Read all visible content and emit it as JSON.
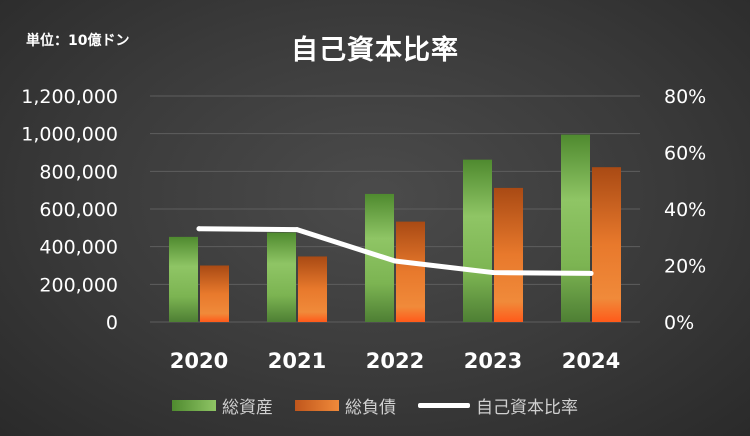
{
  "unit_label": "単位：10億ドン",
  "chart_data": {
    "type": "bar+line",
    "title": "自己資本比率",
    "categories": [
      "2020",
      "2021",
      "2022",
      "2023",
      "2024"
    ],
    "series": [
      {
        "name": "総資産",
        "type": "bar",
        "axis": "left",
        "values": [
          452000,
          475000,
          680000,
          862000,
          995000
        ],
        "color": "#8fc565"
      },
      {
        "name": "総負債",
        "type": "bar",
        "axis": "left",
        "values": [
          300000,
          348000,
          533000,
          712000,
          822000
        ],
        "color": "#e8792c"
      },
      {
        "name": "自己資本比率",
        "type": "line",
        "axis": "right",
        "values": [
          0.33,
          0.327,
          0.216,
          0.175,
          0.172
        ],
        "color": "#ffffff"
      }
    ],
    "yleft": {
      "ticks": [
        0,
        200000,
        400000,
        600000,
        800000,
        1000000,
        1200000
      ],
      "tick_labels": [
        "0",
        "200,000",
        "400,000",
        "600,000",
        "800,000",
        "1,000,000",
        "1,200,000"
      ],
      "ylim": [
        0,
        1200000
      ]
    },
    "yright": {
      "ticks": [
        0,
        0.2,
        0.4,
        0.6,
        0.8
      ],
      "tick_labels": [
        "0%",
        "20%",
        "40%",
        "60%",
        "80%"
      ],
      "ylim": [
        0,
        0.8
      ]
    },
    "grid": true,
    "legend": "bottom"
  }
}
